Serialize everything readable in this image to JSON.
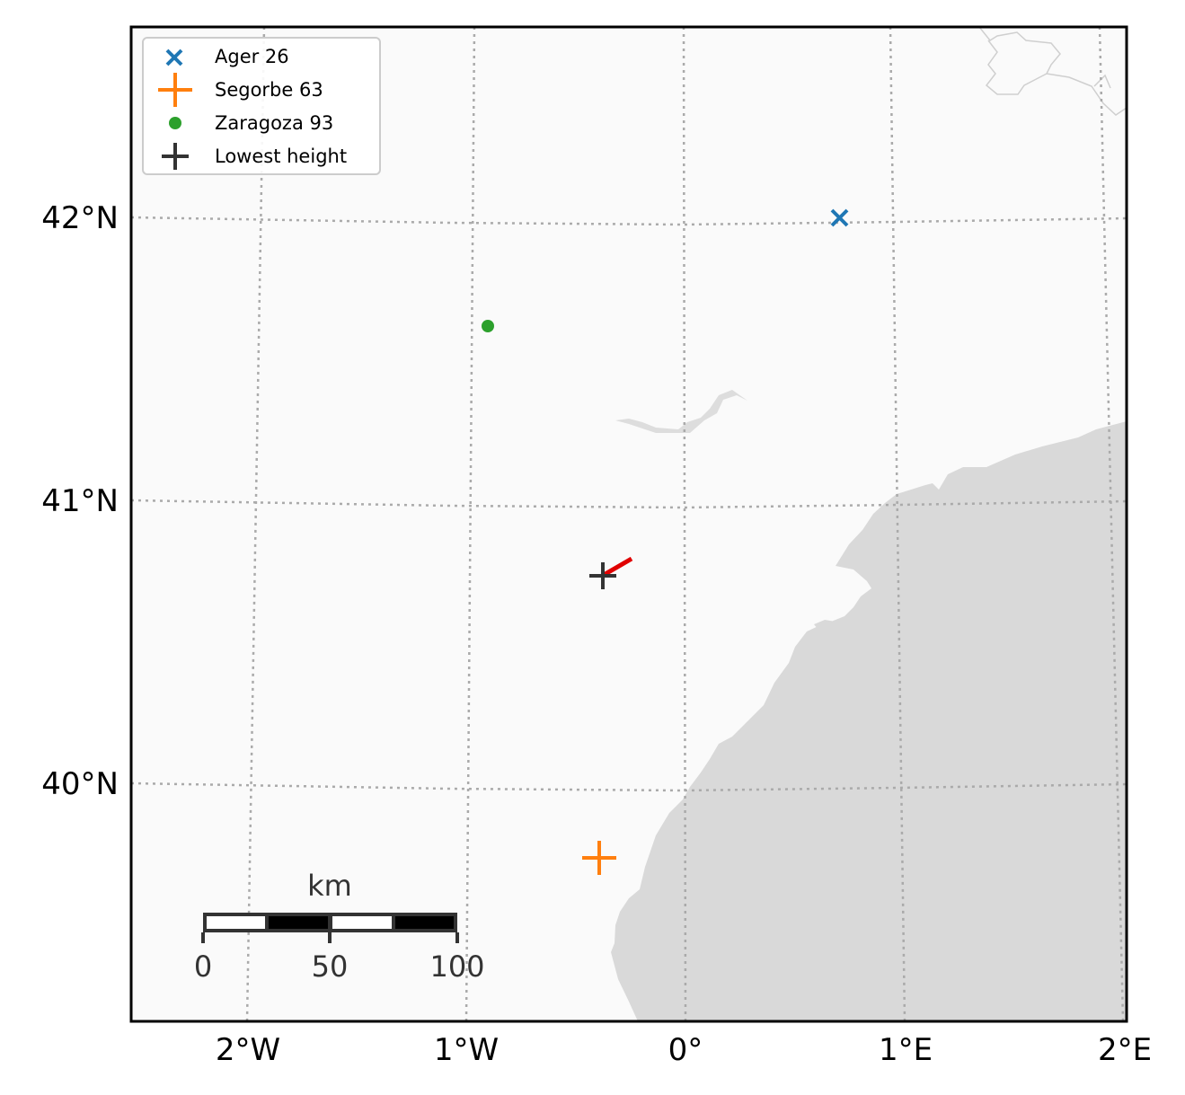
{
  "map": {
    "longitude_labels": [
      "2°W",
      "1°W",
      "0°",
      "1°E",
      "2°E"
    ],
    "latitude_labels": [
      "42°N",
      "41°N",
      "40°N"
    ],
    "colors": {
      "ocean": "#fafafa",
      "land": "#d9d9d9",
      "grid": "#aaaaaa",
      "frame": "#000000",
      "track": "#e00000"
    },
    "legend": [
      {
        "label": "Ager 26",
        "marker": "x",
        "color": "#1f77b4"
      },
      {
        "label": "Segorbe 63",
        "marker": "plus",
        "color": "#ff7f0e"
      },
      {
        "label": "Zaragoza 93",
        "marker": "dot",
        "color": "#2ca02c"
      },
      {
        "label": "Lowest height",
        "marker": "plus",
        "color": "#333333"
      }
    ],
    "points": [
      {
        "name": "Ager 26",
        "lon": 0.7,
        "lat": 42.0
      },
      {
        "name": "Segorbe 63",
        "lon": -0.4,
        "lat": 39.72
      },
      {
        "name": "Zaragoza 93",
        "lon": -0.9,
        "lat": 41.62
      },
      {
        "name": "Lowest height",
        "lon": -0.4,
        "lat": 40.72
      }
    ],
    "scale_bar": {
      "unit": "km",
      "labels": [
        "0",
        "50",
        "100"
      ]
    }
  }
}
